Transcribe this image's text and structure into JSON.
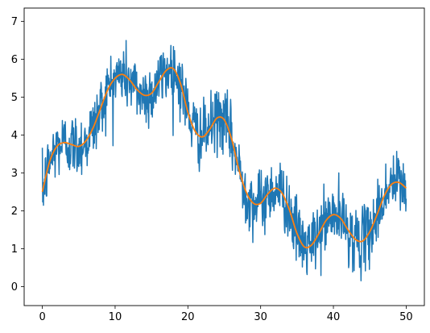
{
  "chart_data": {
    "type": "line",
    "title": "",
    "xlabel": "",
    "ylabel": "",
    "xlim": [
      -2.5,
      52.5
    ],
    "ylim": [
      -0.5,
      7.35
    ],
    "xticks": [
      {
        "value": 0,
        "label": "0"
      },
      {
        "value": 10,
        "label": "10"
      },
      {
        "value": 20,
        "label": "20"
      },
      {
        "value": 30,
        "label": "30"
      },
      {
        "value": 40,
        "label": "40"
      },
      {
        "value": 50,
        "label": "50"
      }
    ],
    "yticks": [
      {
        "value": 0,
        "label": "0"
      },
      {
        "value": 1,
        "label": "1"
      },
      {
        "value": 2,
        "label": "2"
      },
      {
        "value": 3,
        "label": "3"
      },
      {
        "value": 4,
        "label": "4"
      },
      {
        "value": 5,
        "label": "5"
      },
      {
        "value": 6,
        "label": "6"
      },
      {
        "value": 7,
        "label": "7"
      }
    ],
    "grid": false,
    "legend": "none",
    "series": [
      {
        "color": "#1f77b4",
        "style": "noisy",
        "noise_sd": 0.42,
        "num_points": 1000,
        "x_range": [
          0,
          50
        ]
      },
      {
        "color": "#ff7f0e",
        "style": "smooth",
        "x": [
          0,
          1,
          2,
          3,
          4,
          5,
          6,
          7,
          8,
          9,
          10,
          11,
          12,
          13,
          14,
          15,
          16,
          17,
          18,
          19,
          20,
          21,
          22,
          23,
          24,
          25,
          26,
          27,
          28,
          29,
          30,
          31,
          32,
          33,
          34,
          35,
          36,
          37,
          38,
          39,
          40,
          41,
          42,
          43,
          44,
          45,
          46,
          47,
          48,
          49,
          50
        ],
        "y": [
          2.5,
          3.3,
          3.7,
          3.8,
          3.75,
          3.7,
          3.85,
          4.2,
          4.7,
          5.2,
          5.5,
          5.6,
          5.45,
          5.2,
          5.05,
          5.1,
          5.4,
          5.7,
          5.75,
          5.35,
          4.6,
          4.1,
          3.95,
          4.15,
          4.45,
          4.4,
          3.9,
          3.1,
          2.5,
          2.2,
          2.2,
          2.45,
          2.6,
          2.45,
          2.0,
          1.4,
          1.05,
          1.1,
          1.4,
          1.75,
          1.9,
          1.8,
          1.5,
          1.25,
          1.2,
          1.45,
          1.9,
          2.4,
          2.7,
          2.75,
          2.6
        ]
      }
    ]
  }
}
